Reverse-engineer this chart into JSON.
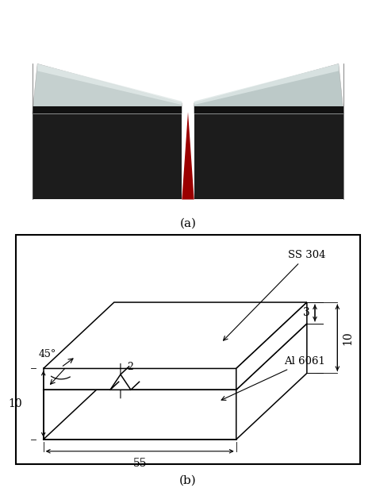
{
  "fig_width": 4.74,
  "fig_height": 6.34,
  "label_a": "(a)",
  "label_b": "(b)",
  "background_color": "#ffffff",
  "photo_bg": "#9b0000",
  "dim_55": "55",
  "dim_10_bottom": "10",
  "dim_10_right": "10",
  "dim_3": "3",
  "dim_2": "2",
  "dim_45": "45°",
  "label_ss304": "SS 304",
  "label_al6061": "Al 6061"
}
